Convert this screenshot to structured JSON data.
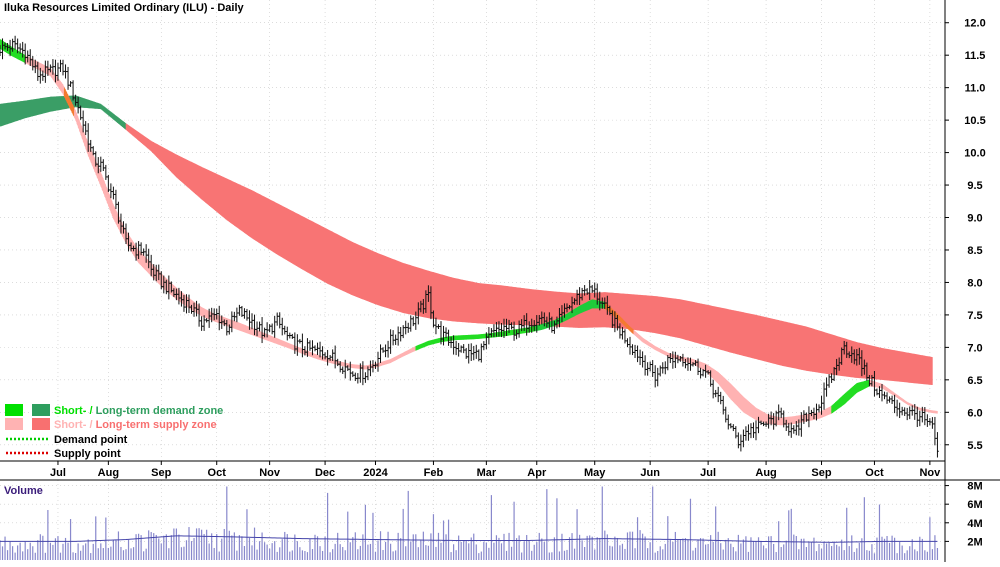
{
  "chart_data": {
    "type": "line",
    "title": "Iluka Resources Limited Ordinary (ILU) - Daily",
    "price_axis": {
      "ticks": [
        "12.0",
        "11.5",
        "11.0",
        "10.5",
        "10.0",
        "9.5",
        "9.0",
        "8.5",
        "8.0",
        "7.5",
        "7.0",
        "6.5",
        "6.0",
        "5.5"
      ],
      "tick_values": [
        12.0,
        11.5,
        11.0,
        10.5,
        10.0,
        9.5,
        9.0,
        8.5,
        8.0,
        7.5,
        7.0,
        6.5,
        6.0,
        5.5
      ],
      "range": [
        5.25,
        12.35
      ]
    },
    "x_axis": {
      "labels": [
        "Jul",
        "Aug",
        "Sep",
        "Oct",
        "Nov",
        "Dec",
        "2024",
        "Feb",
        "Mar",
        "Apr",
        "May",
        "Jun",
        "Jul",
        "Aug",
        "Sep",
        "Oct",
        "Nov"
      ],
      "label_days": [
        23,
        43,
        64,
        86,
        107,
        129,
        149,
        172,
        193,
        213,
        236,
        258,
        281,
        304,
        326,
        347,
        369
      ],
      "day_range": [
        0,
        375
      ]
    },
    "price_series": {
      "name": "ILU",
      "days": [
        0,
        5,
        10,
        15,
        20,
        25,
        30,
        35,
        37,
        40,
        45,
        50,
        54,
        57,
        60,
        64,
        70,
        75,
        80,
        86,
        90,
        95,
        100,
        105,
        110,
        115,
        120,
        125,
        130,
        135,
        140,
        145,
        150,
        155,
        160,
        165,
        170,
        172,
        175,
        180,
        185,
        190,
        195,
        200,
        205,
        210,
        215,
        220,
        225,
        232,
        236,
        240,
        245,
        250,
        255,
        260,
        265,
        270,
        275,
        280,
        285,
        290,
        293,
        296,
        300,
        305,
        310,
        315,
        320,
        325,
        330,
        335,
        340,
        345,
        350,
        355,
        360,
        365,
        370,
        372
      ],
      "close": [
        11.6,
        11.65,
        11.55,
        11.2,
        11.25,
        11.3,
        10.8,
        10.2,
        9.9,
        9.8,
        9.3,
        8.6,
        8.5,
        8.5,
        8.2,
        8.0,
        7.8,
        7.65,
        7.4,
        7.5,
        7.3,
        7.55,
        7.4,
        7.2,
        7.4,
        7.1,
        7.0,
        6.95,
        6.9,
        6.75,
        6.6,
        6.6,
        6.85,
        7.1,
        7.3,
        7.45,
        7.8,
        7.4,
        7.2,
        7.05,
        6.9,
        6.9,
        7.2,
        7.3,
        7.25,
        7.4,
        7.45,
        7.3,
        7.6,
        7.9,
        7.85,
        7.6,
        7.3,
        7.05,
        6.8,
        6.55,
        6.8,
        6.85,
        6.75,
        6.6,
        6.2,
        5.75,
        5.55,
        5.7,
        5.75,
        5.85,
        5.95,
        5.65,
        5.95,
        6.1,
        6.55,
        7.0,
        6.85,
        6.5,
        6.25,
        6.1,
        6.0,
        5.95,
        5.75,
        5.4
      ]
    },
    "short_term_band": {
      "days": [
        0,
        5,
        10,
        15,
        20,
        25,
        30,
        35,
        40,
        45,
        50,
        55,
        60,
        65,
        70,
        75,
        80,
        85,
        90,
        95,
        100,
        105,
        110,
        115,
        120,
        125,
        130,
        135,
        140,
        145,
        150,
        155,
        160,
        165,
        170,
        175,
        180,
        185,
        190,
        195,
        200,
        205,
        210,
        215,
        220,
        225,
        230,
        235,
        240,
        245,
        250,
        255,
        260,
        265,
        270,
        275,
        280,
        285,
        290,
        295,
        300,
        305,
        310,
        315,
        320,
        325,
        330,
        335,
        340,
        345,
        350,
        355,
        360,
        365,
        370,
        372
      ],
      "upper": [
        11.75,
        11.62,
        11.5,
        11.4,
        11.3,
        11.05,
        10.65,
        10.15,
        9.7,
        9.2,
        8.8,
        8.5,
        8.3,
        8.1,
        7.92,
        7.76,
        7.62,
        7.52,
        7.45,
        7.38,
        7.3,
        7.22,
        7.14,
        7.06,
        6.98,
        6.9,
        6.84,
        6.78,
        6.74,
        6.72,
        6.76,
        6.82,
        6.92,
        7.02,
        7.1,
        7.15,
        7.18,
        7.19,
        7.2,
        7.22,
        7.25,
        7.28,
        7.31,
        7.36,
        7.42,
        7.52,
        7.64,
        7.74,
        7.7,
        7.52,
        7.32,
        7.15,
        7.02,
        6.92,
        6.86,
        6.82,
        6.75,
        6.62,
        6.44,
        6.24,
        6.07,
        5.96,
        5.92,
        5.94,
        5.97,
        6.0,
        6.1,
        6.28,
        6.45,
        6.5,
        6.44,
        6.3,
        6.16,
        6.07,
        6.03,
        6.02
      ],
      "lower": [
        11.6,
        11.48,
        11.38,
        11.28,
        11.18,
        10.9,
        10.5,
        9.95,
        9.48,
        8.98,
        8.6,
        8.3,
        8.1,
        7.9,
        7.74,
        7.6,
        7.48,
        7.4,
        7.33,
        7.26,
        7.19,
        7.12,
        7.05,
        6.98,
        6.9,
        6.83,
        6.77,
        6.72,
        6.68,
        6.66,
        6.7,
        6.76,
        6.86,
        6.95,
        7.03,
        7.08,
        7.11,
        7.12,
        7.13,
        7.15,
        7.17,
        7.2,
        7.23,
        7.27,
        7.33,
        7.42,
        7.52,
        7.6,
        7.6,
        7.44,
        7.25,
        7.08,
        6.96,
        6.86,
        6.8,
        6.74,
        6.63,
        6.44,
        6.2,
        6.0,
        5.88,
        5.82,
        5.8,
        5.82,
        5.86,
        5.9,
        5.98,
        6.12,
        6.3,
        6.4,
        6.37,
        6.25,
        6.12,
        6.03,
        5.99,
        5.98
      ],
      "state": [
        "d",
        "d",
        "s",
        "s",
        "s",
        "s",
        "s",
        "s",
        "s",
        "s",
        "s",
        "s",
        "s",
        "s",
        "s",
        "s",
        "s",
        "s",
        "s",
        "s",
        "s",
        "s",
        "s",
        "s",
        "s",
        "s",
        "s",
        "s",
        "s",
        "s",
        "s",
        "s",
        "s",
        "d",
        "d",
        "d",
        "d",
        "d",
        "d",
        "d",
        "d",
        "d",
        "d",
        "d",
        "d",
        "d",
        "d",
        "d",
        "s",
        "s",
        "s",
        "s",
        "s",
        "s",
        "s",
        "s",
        "s",
        "s",
        "s",
        "s",
        "s",
        "s",
        "s",
        "s",
        "s",
        "s",
        "d",
        "d",
        "d",
        "s",
        "s",
        "s",
        "s",
        "s",
        "s",
        "s"
      ]
    },
    "long_term_band": {
      "days": [
        0,
        10,
        20,
        30,
        40,
        50,
        60,
        70,
        80,
        90,
        100,
        110,
        120,
        130,
        140,
        150,
        160,
        170,
        180,
        190,
        200,
        210,
        220,
        230,
        240,
        250,
        260,
        270,
        280,
        290,
        300,
        310,
        320,
        330,
        340,
        350,
        360,
        370
      ],
      "upper": [
        10.75,
        10.8,
        10.86,
        10.88,
        10.75,
        10.45,
        10.18,
        9.97,
        9.78,
        9.6,
        9.42,
        9.22,
        9.02,
        8.82,
        8.62,
        8.45,
        8.3,
        8.18,
        8.07,
        7.99,
        7.95,
        7.9,
        7.86,
        7.83,
        7.85,
        7.82,
        7.79,
        7.74,
        7.66,
        7.58,
        7.5,
        7.41,
        7.32,
        7.2,
        7.08,
        6.99,
        6.92,
        6.85
      ],
      "lower": [
        10.4,
        10.53,
        10.63,
        10.7,
        10.67,
        10.35,
        10.02,
        9.62,
        9.28,
        8.96,
        8.68,
        8.43,
        8.2,
        7.98,
        7.8,
        7.65,
        7.53,
        7.45,
        7.4,
        7.37,
        7.35,
        7.34,
        7.32,
        7.3,
        7.31,
        7.28,
        7.22,
        7.14,
        7.03,
        6.92,
        6.82,
        6.72,
        6.64,
        6.58,
        6.53,
        6.5,
        6.46,
        6.42
      ],
      "state": [
        "d",
        "d",
        "d",
        "d",
        "d",
        "s",
        "s",
        "s",
        "s",
        "s",
        "s",
        "s",
        "s",
        "s",
        "s",
        "s",
        "s",
        "s",
        "s",
        "s",
        "s",
        "s",
        "s",
        "s",
        "s",
        "s",
        "s",
        "s",
        "s",
        "s",
        "s",
        "s",
        "s",
        "s",
        "s",
        "s",
        "s",
        "s"
      ]
    },
    "volume": {
      "label": "Volume",
      "ticks": [
        "8M",
        "6M",
        "4M",
        "2M"
      ],
      "tick_values": [
        8,
        6,
        4,
        2
      ],
      "unit": "M",
      "range": [
        0,
        8.6
      ],
      "average_line_days": [
        0,
        30,
        50,
        70,
        90,
        120,
        150,
        180,
        210,
        240,
        270,
        300,
        330,
        350,
        372
      ],
      "average_line_values": [
        2.0,
        2.0,
        2.2,
        2.6,
        2.5,
        2.3,
        2.2,
        2.1,
        2.1,
        2.3,
        2.2,
        2.0,
        1.9,
        2.0,
        2.0
      ]
    },
    "legend": {
      "placement": "bottom-left",
      "items": [
        {
          "text_a": "Short- / ",
          "text_b": "Long-term demand zone",
          "color_a": "#00e000",
          "color_b": "#2e9e5e"
        },
        {
          "text_a": "Short- / ",
          "text_b": "Long-term supply zone",
          "color_a": "#ffb3b3",
          "color_b": "#f87070"
        },
        {
          "text_a": "Demand point",
          "color_a": "#00cc00"
        },
        {
          "text_a": "Supply point",
          "color_a": "#dd0000"
        }
      ]
    }
  },
  "colors": {
    "short_demand": "#22dd22",
    "short_supply": "#ffb2b2",
    "long_demand": "#3a9e66",
    "long_supply": "#f87474",
    "overlap_supply": "#f47a30",
    "overlap_demand": "#1fcc3a",
    "price_bar": "#111111",
    "volume_bar": "#8888cc",
    "volume_avg": "#4444aa",
    "volume_label": "#3a1c7a",
    "grid": "#c8c8c8",
    "axis": "#000000"
  }
}
